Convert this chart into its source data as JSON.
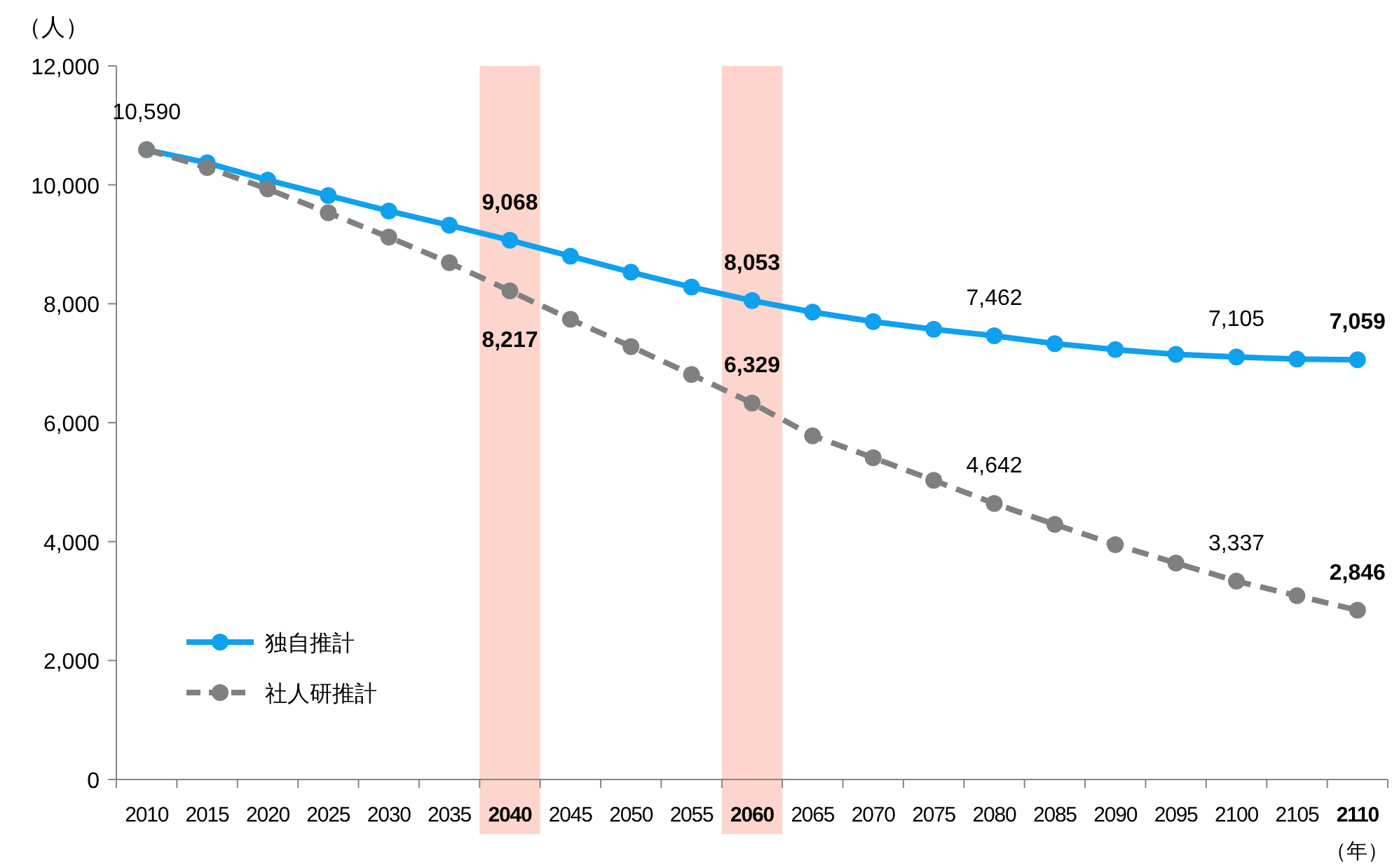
{
  "chart_data": {
    "type": "line",
    "ylabel": "（人）",
    "xlabel": "（年）",
    "categories": [
      "2010",
      "2015",
      "2020",
      "2025",
      "2030",
      "2035",
      "2040",
      "2045",
      "2050",
      "2055",
      "2060",
      "2065",
      "2070",
      "2075",
      "2080",
      "2085",
      "2090",
      "2095",
      "2100",
      "2105",
      "2110"
    ],
    "series": [
      {
        "name": "独自推計",
        "color": "#0fa0ee",
        "line_style": "solid",
        "values": [
          10590,
          10370,
          10080,
          9820,
          9560,
          9320,
          9068,
          8800,
          8530,
          8280,
          8053,
          7860,
          7700,
          7570,
          7462,
          7330,
          7230,
          7150,
          7105,
          7070,
          7059
        ],
        "value_labels": [
          "10,590",
          null,
          null,
          null,
          null,
          null,
          "9,068",
          null,
          null,
          null,
          "8,053",
          null,
          null,
          null,
          "7,462",
          null,
          null,
          null,
          "7,105",
          null,
          "7,059"
        ]
      },
      {
        "name": "社人研推計",
        "color": "#808080",
        "line_style": "dashed",
        "values": [
          10590,
          10290,
          9930,
          9530,
          9120,
          8690,
          8217,
          7740,
          7280,
          6810,
          6329,
          5780,
          5410,
          5030,
          4642,
          4290,
          3950,
          3640,
          3337,
          3090,
          2846
        ],
        "value_labels": [
          null,
          null,
          null,
          null,
          null,
          null,
          "8,217",
          null,
          null,
          null,
          "6,329",
          null,
          null,
          null,
          "4,642",
          null,
          null,
          null,
          "3,337",
          null,
          "2,846"
        ]
      }
    ],
    "ylim": [
      0,
      12000
    ],
    "yticks": [
      0,
      {
        "value": 2000,
        "label": "2,000"
      },
      {
        "value": 4000,
        "label": "4,000"
      },
      {
        "value": 6000,
        "label": "6,000"
      },
      {
        "value": 8000,
        "label": "8,000"
      },
      {
        "value": 10000,
        "label": "10,000"
      },
      {
        "value": 12000,
        "label": "12,000"
      }
    ],
    "bands": [
      {
        "axis": "x",
        "from": "2040",
        "to": "2040",
        "color": "#fdd5cc"
      },
      {
        "axis": "x",
        "from": "2060",
        "to": "2060",
        "color": "#fdd5cc"
      }
    ],
    "marker": "circle",
    "legend": "left",
    "grid": false
  }
}
